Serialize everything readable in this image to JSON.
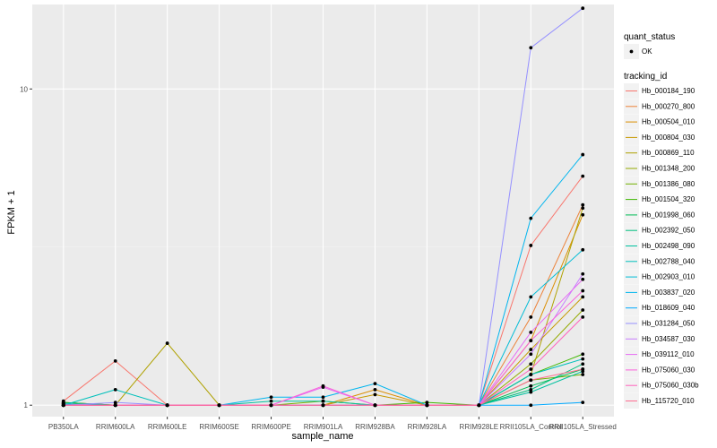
{
  "chart_data": {
    "type": "line",
    "xlabel": "sample_name",
    "ylabel": "FPKM + 1",
    "y_scale": "log10",
    "ylim": [
      0.92,
      18.5
    ],
    "y_ticks": [
      1,
      10
    ],
    "y_tick_labels": [
      "1",
      "10"
    ],
    "grid": true,
    "background": "#ebebeb",
    "categories": [
      "PB350LA",
      "RRIM600LA",
      "RRIM600LE",
      "RRIM600SE",
      "RRIM600PE",
      "RRIM901LA",
      "RRIM928BA",
      "RRIM928LA",
      "RRIM928LE",
      "RRII105LA_Control",
      "RRII105LA_Stressed"
    ],
    "shape_legend": {
      "title": "quant_status",
      "entries": [
        "OK"
      ]
    },
    "legend_title": "tracking_id",
    "legend_position": "right",
    "series": [
      {
        "name": "Hb_000184_190",
        "color": "#F8766D",
        "values": [
          1.03,
          1.38,
          1.0,
          1.0,
          1.0,
          1.0,
          1.0,
          1.0,
          1.0,
          3.2,
          5.3
        ]
      },
      {
        "name": "Hb_000270_800",
        "color": "#EC8239",
        "values": [
          1.02,
          1.0,
          1.0,
          1.0,
          1.0,
          1.0,
          1.0,
          1.0,
          1.0,
          1.9,
          4.3
        ]
      },
      {
        "name": "Hb_000504_010",
        "color": "#DB8E00",
        "values": [
          1.01,
          1.0,
          1.0,
          1.0,
          1.0,
          1.0,
          1.12,
          1.0,
          1.0,
          1.6,
          4.0
        ]
      },
      {
        "name": "Hb_000804_030",
        "color": "#C79800",
        "values": [
          1.0,
          1.0,
          1.0,
          1.0,
          1.0,
          1.0,
          1.08,
          1.0,
          1.0,
          1.5,
          2.2
        ]
      },
      {
        "name": "Hb_000869_110",
        "color": "#AFA100",
        "values": [
          1.01,
          1.0,
          1.57,
          1.0,
          1.0,
          1.0,
          1.0,
          1.0,
          1.0,
          1.25,
          4.2
        ]
      },
      {
        "name": "Hb_001348_200",
        "color": "#94A900",
        "values": [
          1.02,
          1.0,
          1.0,
          1.0,
          1.0,
          1.0,
          1.0,
          1.0,
          1.0,
          1.35,
          2.0
        ]
      },
      {
        "name": "Hb_001386_080",
        "color": "#72B000",
        "values": [
          1.0,
          1.0,
          1.0,
          1.0,
          1.0,
          1.03,
          1.0,
          1.0,
          1.0,
          1.2,
          1.25
        ]
      },
      {
        "name": "Hb_001504_320",
        "color": "#3DB700",
        "values": [
          1.01,
          1.0,
          1.0,
          1.0,
          1.0,
          1.0,
          1.0,
          1.02,
          1.0,
          1.25,
          1.45
        ]
      },
      {
        "name": "Hb_001998_060",
        "color": "#00BC54",
        "values": [
          1.02,
          1.0,
          1.0,
          1.0,
          1.0,
          1.0,
          1.0,
          1.0,
          1.0,
          1.15,
          1.3
        ]
      },
      {
        "name": "Hb_002392_050",
        "color": "#00BF7D",
        "values": [
          1.0,
          1.0,
          1.0,
          1.0,
          1.0,
          1.0,
          1.0,
          1.0,
          1.0,
          1.12,
          1.35
        ]
      },
      {
        "name": "Hb_002498_090",
        "color": "#00C19F",
        "values": [
          1.0,
          1.0,
          1.0,
          1.0,
          1.03,
          1.03,
          1.0,
          1.0,
          1.0,
          1.1,
          1.28
        ]
      },
      {
        "name": "Hb_002788_040",
        "color": "#00C0BB",
        "values": [
          1.0,
          1.12,
          1.0,
          1.0,
          1.0,
          1.0,
          1.0,
          1.0,
          1.0,
          1.25,
          1.4
        ]
      },
      {
        "name": "Hb_002903_010",
        "color": "#00BCD6",
        "values": [
          1.0,
          1.0,
          1.0,
          1.0,
          1.0,
          1.0,
          1.0,
          1.0,
          1.0,
          2.2,
          3.1
        ]
      },
      {
        "name": "Hb_003837_020",
        "color": "#00B5EE",
        "values": [
          1.01,
          1.0,
          1.0,
          1.0,
          1.06,
          1.06,
          1.17,
          1.0,
          1.0,
          3.9,
          6.2
        ]
      },
      {
        "name": "Hb_018609_040",
        "color": "#00A9FF",
        "values": [
          1.0,
          1.0,
          1.0,
          1.0,
          1.0,
          1.0,
          1.0,
          1.0,
          1.0,
          1.0,
          1.02
        ]
      },
      {
        "name": "Hb_031284_050",
        "color": "#9590FF",
        "values": [
          1.0,
          1.02,
          1.0,
          1.0,
          1.0,
          1.0,
          1.0,
          1.0,
          1.0,
          13.5,
          18.0
        ]
      },
      {
        "name": "Hb_034587_030",
        "color": "#C77CFF",
        "values": [
          1.0,
          1.0,
          1.0,
          1.0,
          1.0,
          1.0,
          1.0,
          1.0,
          1.0,
          1.45,
          2.6
        ]
      },
      {
        "name": "Hb_039112_010",
        "color": "#E76BF3",
        "values": [
          1.0,
          1.0,
          1.0,
          1.0,
          1.0,
          1.14,
          1.0,
          1.0,
          1.0,
          1.7,
          2.5
        ]
      },
      {
        "name": "Hb_075060_030",
        "color": "#FA62DB",
        "values": [
          1.0,
          1.0,
          1.0,
          1.0,
          1.0,
          1.15,
          1.0,
          1.0,
          1.0,
          1.6,
          2.3
        ]
      },
      {
        "name": "Hb_075060_030b",
        "color": "#FF62BC",
        "values": [
          1.0,
          1.0,
          1.0,
          1.0,
          1.0,
          1.0,
          1.0,
          1.0,
          1.0,
          1.3,
          1.9
        ]
      },
      {
        "name": "Hb_115720_010",
        "color": "#FF6C91",
        "values": [
          1.0,
          1.0,
          1.0,
          1.0,
          1.0,
          1.0,
          1.0,
          1.0,
          1.0,
          1.2,
          1.3
        ]
      }
    ]
  }
}
